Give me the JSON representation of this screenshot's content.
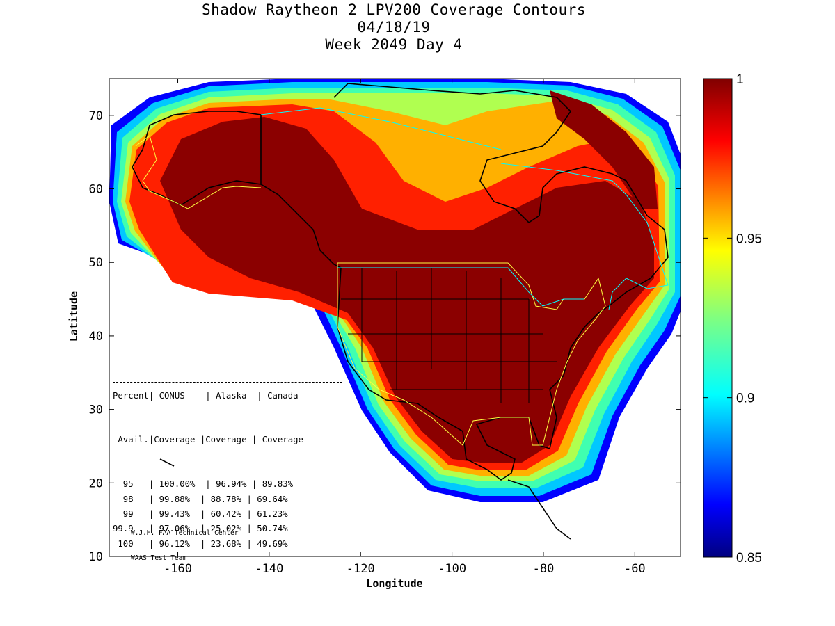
{
  "titles": [
    "Shadow Raytheon 2 LPV200 Coverage Contours",
    "04/18/19",
    "Week 2049 Day 4"
  ],
  "axes": {
    "xlabel": "Longitude",
    "ylabel": "Latitude",
    "xlim": [
      -175,
      -50
    ],
    "ylim": [
      10,
      75
    ],
    "xticks": [
      -160,
      -140,
      -120,
      -100,
      -80,
      -60
    ],
    "yticks": [
      10,
      20,
      30,
      40,
      50,
      60,
      70
    ]
  },
  "colorbar": {
    "range": [
      0.85,
      1
    ],
    "ticks": [
      0.85,
      0.9,
      0.95,
      1
    ],
    "tick_labels": [
      "0.85",
      "0.9",
      "0.95",
      "1"
    ]
  },
  "table": {
    "header1": "Percent| CONUS    | Alaska  | Canada",
    "header2": " Avail.|Coverage |Coverage | Coverage",
    "rule": "------------------------------------------",
    "rows": [
      "  95   | 100.00%  | 96.94% | 89.83%",
      "  98   | 99.88%  | 88.78% | 69.64%",
      "  99   | 99.43%  | 60.42% | 61.23%",
      "99.9   | 97.06%  | 25.02% | 50.74%",
      " 100   | 96.12%  | 23.68% | 49.69%"
    ]
  },
  "credit": [
    "W.J.H. FAA Technical Center",
    "WAAS Test Team"
  ],
  "chart_data": {
    "type": "heatmap",
    "title": "Shadow Raytheon 2 LPV200 Coverage Contours",
    "subtitle": [
      "04/18/19",
      "Week 2049 Day 4"
    ],
    "xlabel": "Longitude",
    "ylabel": "Latitude",
    "xlim": [
      -175,
      -50
    ],
    "ylim": [
      10,
      75
    ],
    "color_range": [
      0.85,
      1
    ],
    "colormap": "jet",
    "coverage_table": {
      "columns": [
        "Percent Avail.",
        "CONUS Coverage",
        "Alaska Coverage",
        "Canada Coverage"
      ],
      "rows": [
        [
          "95",
          "100.00%",
          "96.94%",
          "89.83%"
        ],
        [
          "98",
          "99.88%",
          "88.78%",
          "69.64%"
        ],
        [
          "99",
          "99.43%",
          "60.42%",
          "61.23%"
        ],
        [
          "99.9",
          "97.06%",
          "25.02%",
          "50.74%"
        ],
        [
          "100",
          "96.12%",
          "23.68%",
          "49.69%"
        ]
      ]
    }
  }
}
